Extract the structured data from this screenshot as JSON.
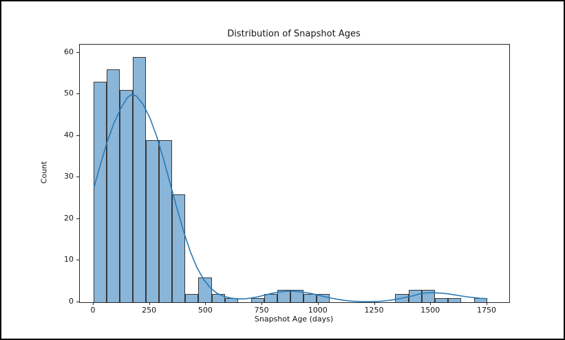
{
  "window": {
    "background_color": "#ffffff",
    "frame_color": "#000000"
  },
  "chart_data": {
    "type": "bar",
    "subtype": "histogram-with-kde",
    "title": "Distribution of Snapshot Ages",
    "xlabel": "Snapshot Age (days)",
    "ylabel": "Count",
    "x_ticks": [
      0,
      250,
      500,
      750,
      1000,
      1250,
      1500,
      1750
    ],
    "y_ticks": [
      0,
      10,
      20,
      30,
      40,
      50,
      60
    ],
    "xlim": [
      -61,
      1848
    ],
    "ylim": [
      0,
      61.95
    ],
    "grid": false,
    "legend": "none",
    "bin_start": 0,
    "bin_width_days": 58.333,
    "counts": [
      53,
      56,
      51,
      59,
      39,
      39,
      26,
      2,
      6,
      2,
      1,
      0,
      1,
      2,
      3,
      3,
      2,
      2,
      0,
      0,
      0,
      0,
      0,
      2,
      3,
      3,
      1,
      1,
      0,
      1
    ],
    "kde_curve": [
      [
        1,
        27.5
      ],
      [
        30,
        33.0
      ],
      [
        60,
        38.5
      ],
      [
        90,
        43.0
      ],
      [
        120,
        46.5
      ],
      [
        150,
        49.2
      ],
      [
        170,
        50.0
      ],
      [
        190,
        49.6
      ],
      [
        220,
        47.6
      ],
      [
        250,
        44.4
      ],
      [
        280,
        40.0
      ],
      [
        310,
        34.6
      ],
      [
        340,
        28.7
      ],
      [
        370,
        22.7
      ],
      [
        400,
        17.1
      ],
      [
        430,
        12.2
      ],
      [
        460,
        8.3
      ],
      [
        490,
        5.4
      ],
      [
        520,
        3.4
      ],
      [
        550,
        2.1
      ],
      [
        580,
        1.4
      ],
      [
        610,
        1.0
      ],
      [
        640,
        0.8
      ],
      [
        670,
        0.8
      ],
      [
        700,
        1.0
      ],
      [
        730,
        1.3
      ],
      [
        760,
        1.7
      ],
      [
        790,
        2.1
      ],
      [
        820,
        2.4
      ],
      [
        850,
        2.6
      ],
      [
        880,
        2.65
      ],
      [
        910,
        2.55
      ],
      [
        940,
        2.35
      ],
      [
        970,
        2.05
      ],
      [
        1000,
        1.7
      ],
      [
        1030,
        1.3
      ],
      [
        1060,
        0.95
      ],
      [
        1090,
        0.65
      ],
      [
        1120,
        0.42
      ],
      [
        1150,
        0.26
      ],
      [
        1180,
        0.17
      ],
      [
        1210,
        0.13
      ],
      [
        1240,
        0.15
      ],
      [
        1270,
        0.22
      ],
      [
        1300,
        0.35
      ],
      [
        1330,
        0.57
      ],
      [
        1360,
        0.85
      ],
      [
        1390,
        1.2
      ],
      [
        1420,
        1.55
      ],
      [
        1450,
        2.0
      ],
      [
        1480,
        2.25
      ],
      [
        1510,
        2.3
      ],
      [
        1540,
        2.2
      ],
      [
        1570,
        2.05
      ],
      [
        1600,
        1.8
      ],
      [
        1630,
        1.55
      ],
      [
        1660,
        1.3
      ],
      [
        1690,
        1.1
      ],
      [
        1720,
        0.95
      ],
      [
        1745,
        0.88
      ]
    ],
    "colors": {
      "bar_fill": "#8ab6d9",
      "bar_edge": "#383838",
      "kde_line": "#2878b5",
      "spine": "#262626",
      "text": "#141414"
    }
  }
}
